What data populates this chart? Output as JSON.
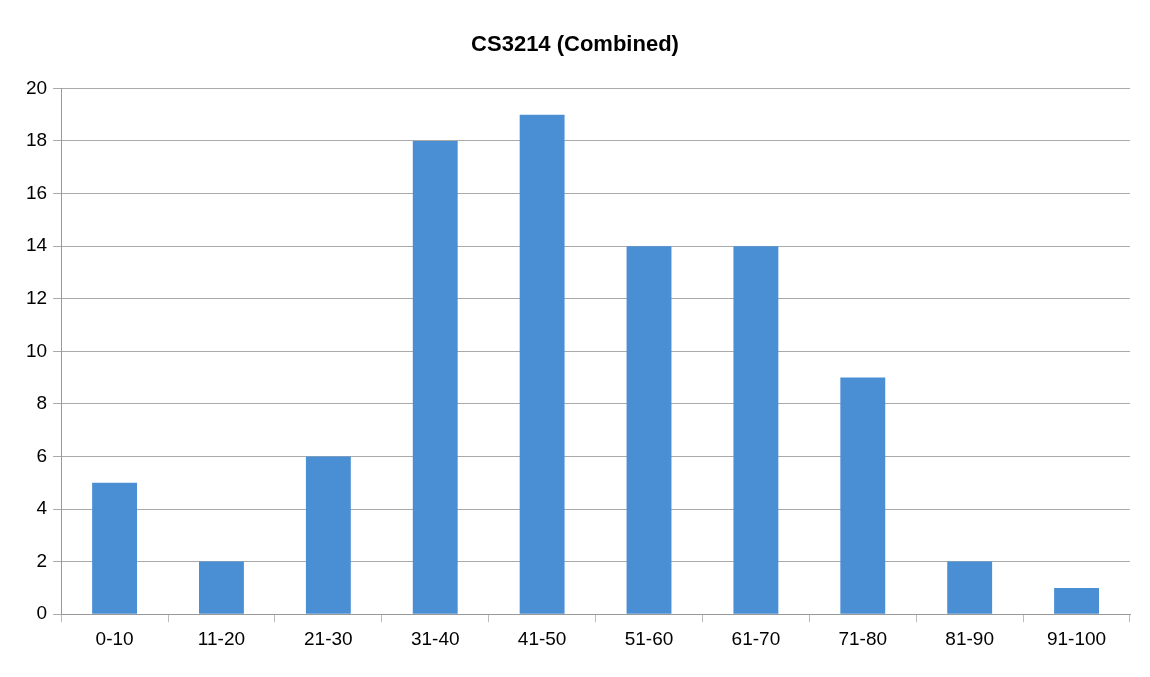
{
  "chart_data": {
    "type": "bar",
    "title": "CS3214 (Combined)",
    "categories": [
      "0-10",
      "11-20",
      "21-30",
      "31-40",
      "41-50",
      "51-60",
      "61-70",
      "71-80",
      "81-90",
      "91-100"
    ],
    "values": [
      5,
      2,
      6,
      18,
      19,
      14,
      14,
      9,
      2,
      1
    ],
    "color": "#4a8fd4",
    "ylim": [
      0,
      20
    ],
    "yticks": [
      0,
      2,
      4,
      6,
      8,
      10,
      12,
      14,
      16,
      18,
      20
    ],
    "grid": "y",
    "legend": false
  }
}
